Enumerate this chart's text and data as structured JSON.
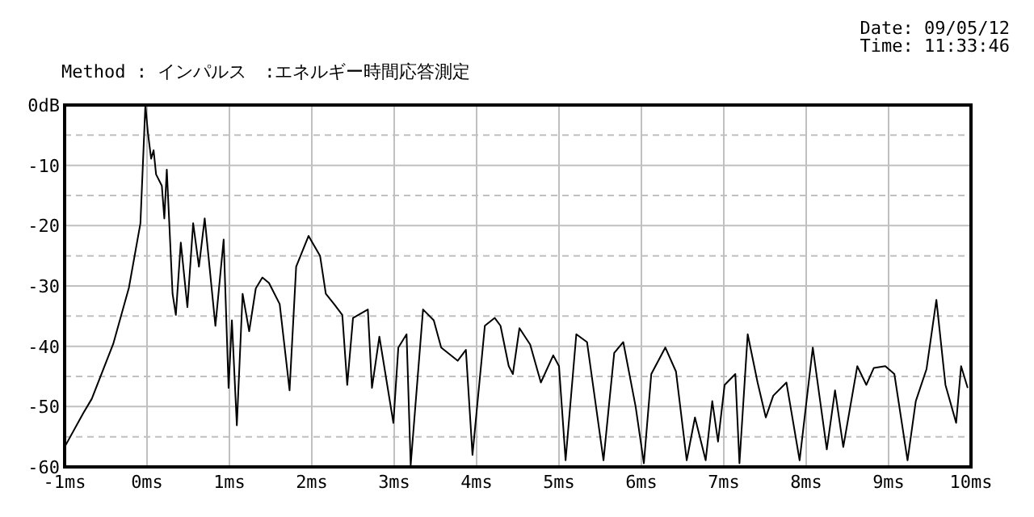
{
  "chart_data": {
    "type": "line",
    "subtitle": "Method : インパルス　:エネルギー時間応答測定",
    "annotations": [
      "Date: 09/05/12",
      "Time: 11:33:46"
    ],
    "xlim": [
      -1,
      10
    ],
    "ylim": [
      -60,
      0
    ],
    "xticks": [
      {
        "value": -1,
        "label": "-1ms"
      },
      {
        "value": 0,
        "label": "0ms"
      },
      {
        "value": 1,
        "label": "1ms"
      },
      {
        "value": 2,
        "label": "2ms"
      },
      {
        "value": 3,
        "label": "3ms"
      },
      {
        "value": 4,
        "label": "4ms"
      },
      {
        "value": 5,
        "label": "5ms"
      },
      {
        "value": 6,
        "label": "6ms"
      },
      {
        "value": 7,
        "label": "7ms"
      },
      {
        "value": 8,
        "label": "8ms"
      },
      {
        "value": 9,
        "label": "9ms"
      },
      {
        "value": 10,
        "label": "10ms"
      }
    ],
    "yticks": [
      {
        "value": 0,
        "label": "0dB"
      },
      {
        "value": -5,
        "label": null
      },
      -10,
      {
        "value": -15,
        "label": null
      },
      -20,
      {
        "value": -25,
        "label": null
      },
      -30,
      {
        "value": -35,
        "label": null
      },
      -40,
      {
        "value": -45,
        "label": null
      },
      -50,
      {
        "value": -55,
        "label": null
      },
      -60
    ],
    "grid": true,
    "series": [
      {
        "color": "#000000",
        "x": [
          -1,
          -0.77,
          -0.67,
          -0.41,
          -0.22,
          -0.08,
          -0.02,
          0.01,
          0.05,
          0.08,
          0.11,
          0.18,
          0.21,
          0.24,
          0.31,
          0.35,
          0.41,
          0.49,
          0.56,
          0.63,
          0.7,
          0.83,
          0.93,
          0.99,
          1.03,
          1.09,
          1.16,
          1.24,
          1.32,
          1.4,
          1.48,
          1.61,
          1.73,
          1.81,
          1.96,
          2.1,
          2.17,
          2.27,
          2.37,
          2.43,
          2.5,
          2.68,
          2.73,
          2.82,
          2.99,
          3.05,
          3.15,
          3.2,
          3.35,
          3.48,
          3.57,
          3.77,
          3.87,
          3.95,
          4.1,
          4.22,
          4.29,
          4.39,
          4.44,
          4.52,
          4.65,
          4.78,
          4.93,
          5.0,
          5.08,
          5.21,
          5.34,
          5.54,
          5.67,
          5.78,
          5.93,
          6.03,
          6.12,
          6.29,
          6.42,
          6.55,
          6.65,
          6.78,
          6.86,
          6.93,
          7.01,
          7.14,
          7.19,
          7.29,
          7.41,
          7.51,
          7.6,
          7.76,
          7.92,
          8.08,
          8.25,
          8.35,
          8.45,
          8.62,
          8.73,
          8.82,
          8.96,
          9.07,
          9.23,
          9.33,
          9.46,
          9.58,
          9.69,
          9.82,
          9.88,
          9.96
        ],
        "values": [
          -56.7,
          -51,
          -48.7,
          -39.6,
          -30.3,
          -19.6,
          0,
          -4.5,
          -8.9,
          -7.5,
          -11.5,
          -13.4,
          -18.8,
          -10.7,
          -31.3,
          -34.8,
          -22.8,
          -33.5,
          -19.6,
          -26.8,
          -18.8,
          -36.6,
          -22.3,
          -46.9,
          -35.7,
          -53.1,
          -31.3,
          -37.5,
          -30.4,
          -28.6,
          -29.5,
          -33,
          -47.3,
          -26.8,
          -21.7,
          -25,
          -31.3,
          -33,
          -34.8,
          -46.4,
          -35.3,
          -33.9,
          -46.9,
          -38.4,
          -52.7,
          -40.2,
          -38,
          -59.7,
          -33.9,
          -35.7,
          -40.2,
          -42.4,
          -40.6,
          -58,
          -36.6,
          -35.3,
          -36.6,
          -43.3,
          -44.6,
          -37,
          -39.7,
          -46,
          -41.5,
          -43.3,
          -58.9,
          -38,
          -39.3,
          -58.9,
          -41.1,
          -39.3,
          -50,
          -59.4,
          -44.6,
          -40.2,
          -44.2,
          -58.9,
          -51.8,
          -58.9,
          -49.1,
          -55.8,
          -46.4,
          -44.6,
          -59.4,
          -38,
          -46,
          -51.8,
          -48.2,
          -46,
          -58.9,
          -40.2,
          -57.1,
          -47.3,
          -56.7,
          -43.3,
          -46.4,
          -43.6,
          -43.3,
          -44.6,
          -58.9,
          -49.1,
          -43.8,
          -32.3,
          -46.4,
          -52.7,
          -43.3,
          -46.9
        ]
      }
    ]
  }
}
